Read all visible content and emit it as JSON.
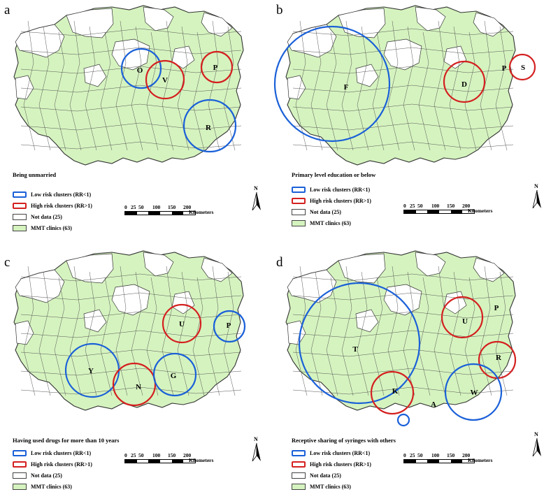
{
  "colors": {
    "mmt_fill": "#d5f3bf",
    "no_data_fill": "#ffffff",
    "border": "#333333",
    "low_risk": "#1a60d8",
    "high_risk": "#d42020"
  },
  "legend": {
    "low": "Low risk clusters (RR<1)",
    "high": "High risk clusters (RR>1)",
    "nodata": "Not data (25)",
    "mmt": "MMT clinics (63)"
  },
  "scale": {
    "ticks": [
      "0",
      "25",
      "50",
      "100",
      "150",
      "200"
    ],
    "unit": "Kilometers"
  },
  "north_label": "N",
  "panels": [
    {
      "label": "a",
      "title": "Being unmarried",
      "clusters": [
        {
          "label": "O",
          "risk": "low"
        },
        {
          "label": "V",
          "risk": "high"
        },
        {
          "label": "P",
          "risk": "high"
        },
        {
          "label": "R",
          "risk": "low"
        }
      ]
    },
    {
      "label": "b",
      "title": "Primary level education or below",
      "clusters": [
        {
          "label": "F",
          "risk": "low"
        },
        {
          "label": "D",
          "risk": "high"
        },
        {
          "label": "P",
          "risk": "none"
        },
        {
          "label": "S",
          "risk": "high"
        }
      ]
    },
    {
      "label": "c",
      "title": "Having used drugs for more than 10 years",
      "clusters": [
        {
          "label": "U",
          "risk": "high"
        },
        {
          "label": "P",
          "risk": "low"
        },
        {
          "label": "Y",
          "risk": "low"
        },
        {
          "label": "N",
          "risk": "high"
        },
        {
          "label": "G",
          "risk": "low"
        }
      ]
    },
    {
      "label": "d",
      "title": "Receptive sharing  of syringes with others",
      "clusters": [
        {
          "label": "T",
          "risk": "low"
        },
        {
          "label": "U",
          "risk": "high"
        },
        {
          "label": "P",
          "risk": "none"
        },
        {
          "label": "R",
          "risk": "high"
        },
        {
          "label": "K",
          "risk": "high"
        },
        {
          "label": "A",
          "risk": "none"
        },
        {
          "label": "W",
          "risk": "low"
        },
        {
          "label": "",
          "risk": "low"
        }
      ]
    }
  ]
}
